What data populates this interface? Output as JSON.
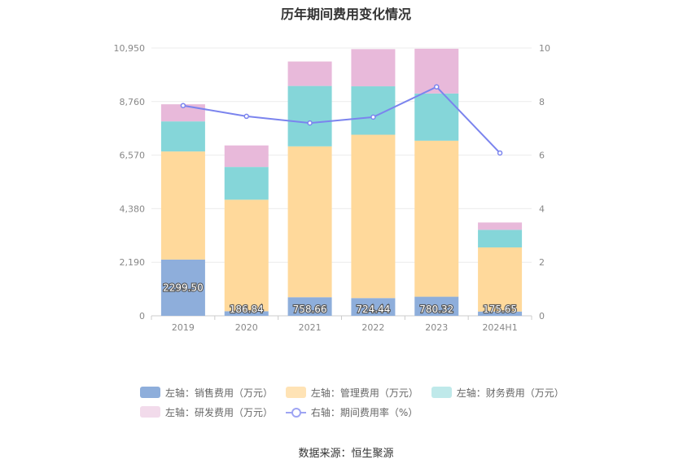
{
  "title": "历年期间费用变化情况",
  "source": "数据来源：恒生聚源",
  "chart_data": {
    "type": "bar",
    "stacked": true,
    "categories": [
      "2019",
      "2020",
      "2021",
      "2022",
      "2023",
      "2024H1"
    ],
    "left_axis": {
      "ticks": [
        "0",
        "2,190",
        "4,380",
        "6,570",
        "8,760",
        "10,950"
      ],
      "ylim": [
        0,
        10950
      ]
    },
    "right_axis": {
      "ticks": [
        "0",
        "2",
        "4",
        "6",
        "8",
        "10"
      ],
      "ylim": [
        0,
        10
      ]
    },
    "series": [
      {
        "name": "左轴：销售费用（万元）",
        "axis": "left",
        "color": "#8eaedb",
        "values": [
          2299.5,
          186.84,
          758.66,
          724.44,
          780.32,
          175.65
        ],
        "labels": [
          "2299.50",
          "186.84",
          "758.66",
          "724.44",
          "780.32",
          "175.65"
        ]
      },
      {
        "name": "左轴：管理费用（万元）",
        "axis": "left",
        "color": "#ffd99b",
        "values": [
          4420,
          4560,
          6170,
          6680,
          6380,
          2620
        ]
      },
      {
        "name": "左轴：财务费用（万元）",
        "axis": "left",
        "color": "#85d6d9",
        "values": [
          1230,
          1340,
          2470,
          1980,
          1930,
          720
        ]
      },
      {
        "name": "左轴：研发费用（万元）",
        "axis": "left",
        "color": "#e8b9da",
        "values": [
          700,
          880,
          1000,
          1520,
          1830,
          300
        ]
      },
      {
        "name": "右轴：期间费用率（%）",
        "axis": "right",
        "type": "line",
        "color": "#7b84ee",
        "values": [
          7.85,
          7.45,
          7.2,
          7.42,
          8.55,
          6.08
        ]
      }
    ],
    "grid": true,
    "legend_position": "bottom"
  }
}
